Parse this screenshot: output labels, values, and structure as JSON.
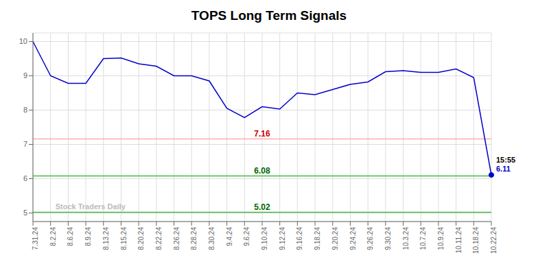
{
  "chart_data": {
    "type": "line",
    "title": "TOPS Long Term Signals",
    "categories": [
      "7.31.24",
      "8.2.24",
      "8.6.24",
      "8.9.24",
      "8.13.24",
      "8.15.24",
      "8.20.24",
      "8.22.24",
      "8.26.24",
      "8.28.24",
      "8.30.24",
      "9.4.24",
      "9.6.24",
      "9.10.24",
      "9.12.24",
      "9.16.24",
      "9.18.24",
      "9.20.24",
      "9.24.24",
      "9.26.24",
      "9.30.24",
      "10.3.24",
      "10.7.24",
      "10.9.24",
      "10.11.24",
      "10.18.24",
      "10.22.24"
    ],
    "values": [
      10.0,
      9.0,
      8.78,
      8.78,
      9.5,
      9.52,
      9.35,
      9.28,
      9.0,
      9.0,
      8.85,
      8.05,
      7.78,
      8.1,
      8.03,
      8.5,
      8.45,
      8.6,
      8.75,
      8.82,
      9.12,
      9.15,
      9.1,
      9.1,
      9.2,
      8.95,
      6.11
    ],
    "color": "#0000cc",
    "marker": "circle",
    "ylim": [
      4.75,
      10.25
    ],
    "yticks": [
      5,
      6,
      7,
      8,
      9,
      10
    ],
    "grid": true,
    "hlines": [
      {
        "value": 7.16,
        "label": "7.16",
        "color": "#ffaaaa",
        "label_color": "#cc0000"
      },
      {
        "value": 6.08,
        "label": "6.08",
        "color": "#44bb44",
        "label_color": "#006600"
      },
      {
        "value": 5.02,
        "label": "5.02",
        "color": "#44bb44",
        "label_color": "#006600"
      }
    ],
    "annotations": [
      {
        "text": "15:55",
        "x": "10.22.24",
        "y": 6.11,
        "color": "#000000"
      },
      {
        "text": "6.11",
        "x": "10.22.24",
        "y": 6.11,
        "color": "#0000cc"
      },
      {
        "text": "Stock Traders Daily",
        "x": "8.2.24",
        "y": 5.02,
        "color": "#bbbbbb"
      }
    ]
  }
}
